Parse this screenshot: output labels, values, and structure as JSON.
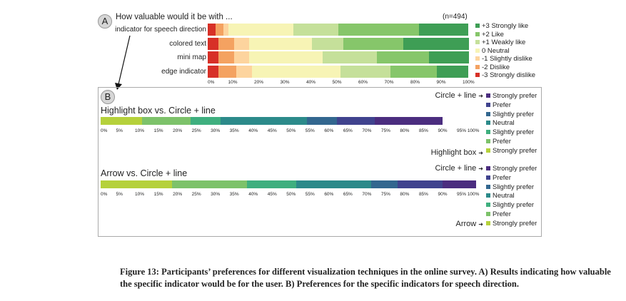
{
  "panel_a": {
    "badge": "A",
    "title": "How valuable would it be with ...",
    "n_label": "(n=494)",
    "indicator_label": "indicator for speech direction"
  },
  "panel_b": {
    "badge": "B"
  },
  "caption": "Figure 13: Participants’ preferences for different visualization techniques in the online survey. A) Results indicating how valuable the specific indicator would be for the user. B) Preferences for the specific indicators for speech direction.",
  "colors": {
    "a": [
      "#d73027",
      "#f4a261",
      "#fdd49e",
      "#f7f4b5",
      "#c5e09a",
      "#86c66a",
      "#3e9e55"
    ],
    "b": [
      "#b5d13b",
      "#7dc26a",
      "#3faf7f",
      "#2c8a8a",
      "#33678f",
      "#40438e",
      "#4b2d7f"
    ]
  },
  "chart_data": [
    {
      "type": "bar",
      "stacked": true,
      "orientation": "horizontal",
      "title": "How valuable would it be with ...",
      "n": "(n=494)",
      "categories": [
        "indicator for speech direction",
        "colored text",
        "mini map",
        "edge indicator"
      ],
      "series": [
        {
          "name": "-3 Strongly dislike",
          "values": [
            3,
            4,
            4,
            4
          ]
        },
        {
          "name": "-2 Dislike",
          "values": [
            3,
            6,
            6,
            7
          ]
        },
        {
          "name": "-1 Slightly dislike",
          "values": [
            2,
            6,
            6,
            6
          ]
        },
        {
          "name": "0  Neutral",
          "values": [
            25,
            24,
            28,
            34
          ]
        },
        {
          "name": "+1 Weakly like",
          "values": [
            17,
            12,
            21,
            19
          ]
        },
        {
          "name": "+2 Like",
          "values": [
            31,
            23,
            20,
            18
          ]
        },
        {
          "name": "+3 Strongly like",
          "values": [
            19,
            25,
            15,
            12
          ]
        }
      ],
      "x_ticks": [
        "0%",
        "10%",
        "20%",
        "30%",
        "40%",
        "50%",
        "60%",
        "70%",
        "80%",
        "90%",
        "100%"
      ],
      "xlim": [
        0,
        100
      ],
      "legend_order": [
        "+3 Strongly like",
        "+2 Like",
        "+1 Weakly like",
        "0  Neutral",
        "-1 Slightly dislike",
        "-2 Dislike",
        "-3 Strongly dislike"
      ],
      "legend_position": "right"
    },
    {
      "type": "bar",
      "stacked": true,
      "orientation": "horizontal",
      "title": "Highlight box vs. Circle + line",
      "values": [
        11,
        13,
        8,
        23,
        8,
        10,
        18
      ],
      "segment_labels": [
        "Highlight box Strongly prefer",
        "Highlight box Prefer",
        "Highlight box Slightly prefer",
        "Neutral",
        "Circle + line Slightly prefer",
        "Circle + line Prefer",
        "Circle + line Strongly prefer"
      ],
      "x_ticks": [
        "0%",
        "5%",
        "10%",
        "15%",
        "20%",
        "25%",
        "30%",
        "35%",
        "40%",
        "45%",
        "50%",
        "55%",
        "60%",
        "65%",
        "70%",
        "75%",
        "80%",
        "85%",
        "90%",
        "95% 100%"
      ],
      "xlim": [
        0,
        100
      ],
      "legend": {
        "top": "Circle + line",
        "bottom": "Highlight box",
        "items_top_to_bottom": [
          "Strongly prefer",
          "Prefer",
          "Slightly prefer",
          "Neutral",
          "Slightly prefer",
          "Prefer",
          "Strongly prefer"
        ]
      }
    },
    {
      "type": "bar",
      "stacked": true,
      "orientation": "horizontal",
      "title": "Arrow vs. Circle + line",
      "values": [
        19,
        20,
        13,
        20,
        7,
        12,
        9
      ],
      "segment_labels": [
        "Arrow Strongly prefer",
        "Arrow Prefer",
        "Arrow Slightly prefer",
        "Neutral",
        "Circle + line Slightly prefer",
        "Circle + line Prefer",
        "Circle + line Strongly prefer"
      ],
      "x_ticks": [
        "0%",
        "5%",
        "10%",
        "15%",
        "20%",
        "25%",
        "30%",
        "35%",
        "40%",
        "45%",
        "50%",
        "55%",
        "60%",
        "65%",
        "70%",
        "75%",
        "80%",
        "85%",
        "90%",
        "95% 100%"
      ],
      "xlim": [
        0,
        100
      ],
      "legend": {
        "top": "Circle + line",
        "bottom": "Arrow",
        "items_top_to_bottom": [
          "Strongly prefer",
          "Prefer",
          "Slightly prefer",
          "Neutral",
          "Slightly prefer",
          "Prefer",
          "Strongly prefer"
        ]
      }
    }
  ]
}
